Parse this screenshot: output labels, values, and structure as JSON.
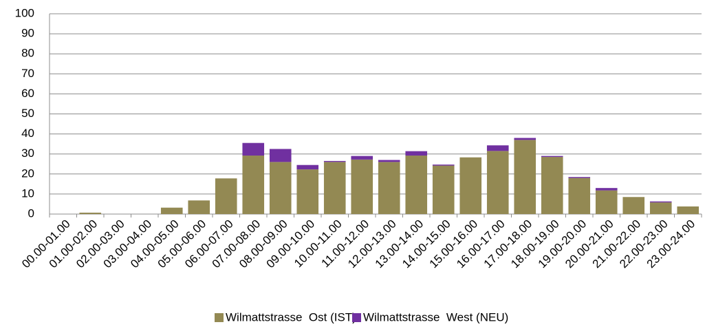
{
  "chart_data": {
    "type": "stacked_bar",
    "categories": [
      "00.00-01.00",
      "01.00-02.00",
      "02.00-03.00",
      "03.00-04.00",
      "04.00-05.00",
      "05.00-06.00",
      "06.00-07.00",
      "07.00-08.00",
      "08.00-09.00",
      "09.00-10.00",
      "10.00-11.00",
      "11.00-12.00",
      "12.00-13.00",
      "13.00-14.00",
      "14.00-15.00",
      "15.00-16.00",
      "16.00-17.00",
      "17.00-18.00",
      "18.00-19.00",
      "19.00-20.00",
      "20.00-21.00",
      "21.00-22.00",
      "22.00-23.00",
      "23.00-24.00"
    ],
    "series": [
      {
        "name": "Wilmattstrasse  Ost (IST)",
        "color": "#938953",
        "values": [
          0,
          0.7,
          0,
          0,
          3.2,
          6.8,
          17.8,
          29.2,
          26,
          22.3,
          26,
          27.2,
          26,
          29.2,
          24.2,
          28.3,
          31.5,
          37,
          28.5,
          18,
          11.8,
          8.5,
          5.8,
          3.8
        ]
      },
      {
        "name": "Wilmattstrasse  West (NEU)",
        "color": "#7030a0",
        "values": [
          0,
          0,
          0,
          0,
          0,
          0,
          0,
          6.3,
          6.5,
          2.2,
          0.5,
          1.8,
          1,
          2.2,
          0.5,
          0,
          2.8,
          1,
          0.5,
          0.5,
          1.2,
          0,
          0.5,
          0
        ]
      }
    ],
    "ylim": [
      0,
      100
    ],
    "yticks": [
      0,
      10,
      20,
      30,
      40,
      50,
      60,
      70,
      80,
      90,
      100
    ],
    "grid": true,
    "legend": "bottom"
  }
}
